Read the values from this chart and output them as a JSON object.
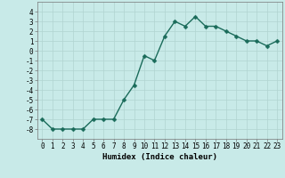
{
  "x": [
    0,
    1,
    2,
    3,
    4,
    5,
    6,
    7,
    8,
    9,
    10,
    11,
    12,
    13,
    14,
    15,
    16,
    17,
    18,
    19,
    20,
    21,
    22,
    23
  ],
  "y": [
    -7,
    -8,
    -8,
    -8,
    -8,
    -7,
    -7,
    -7,
    -5,
    -3.5,
    -0.5,
    -1,
    1.5,
    3,
    2.5,
    3.5,
    2.5,
    2.5,
    2,
    1.5,
    1,
    1,
    0.5,
    1
  ],
  "line_color": "#1a6b5a",
  "marker_color": "#1a6b5a",
  "bg_color": "#c8eae8",
  "grid_color": "#b0d4d0",
  "xlabel": "Humidex (Indice chaleur)",
  "xlabel_fontsize": 6.5,
  "ylim": [
    -9,
    5
  ],
  "xlim": [
    -0.5,
    23.5
  ],
  "yticks": [
    -8,
    -7,
    -6,
    -5,
    -4,
    -3,
    -2,
    -1,
    0,
    1,
    2,
    3,
    4
  ],
  "xticks": [
    0,
    1,
    2,
    3,
    4,
    5,
    6,
    7,
    8,
    9,
    10,
    11,
    12,
    13,
    14,
    15,
    16,
    17,
    18,
    19,
    20,
    21,
    22,
    23
  ],
  "tick_fontsize": 5.5,
  "line_width": 1.0,
  "marker_size": 2.5
}
